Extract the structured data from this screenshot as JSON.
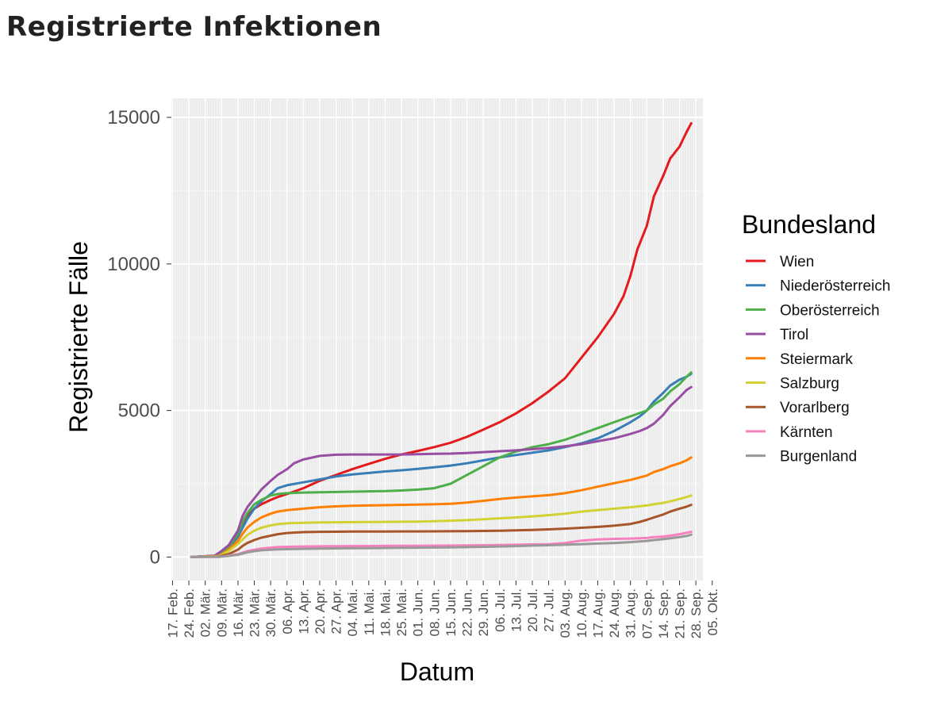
{
  "page": {
    "title": "Registrierte Infektionen"
  },
  "chart_data": {
    "type": "line",
    "title": "Registrierte Infektionen",
    "xlabel": "Datum",
    "ylabel": "Registrierte Fälle",
    "x_unit": "days since 17. Feb.",
    "xlim": [
      -0.5,
      227
    ],
    "ylim": [
      -800,
      15650
    ],
    "yticks": [
      0,
      5000,
      10000,
      15000
    ],
    "ytick_labels": [
      "0",
      "5000",
      "10000",
      "15000"
    ],
    "xticks": [
      0,
      7,
      14,
      21,
      28,
      35,
      42,
      49,
      56,
      63,
      70,
      77,
      84,
      91,
      98,
      105,
      112,
      119,
      126,
      133,
      140,
      147,
      154,
      161,
      168,
      175,
      182,
      189,
      196,
      203,
      210,
      217,
      224,
      231
    ],
    "xtick_labels": [
      "17. Feb.",
      "24. Feb.",
      "02. Mär.",
      "09. Mär.",
      "16. Mär.",
      "23. Mär.",
      "30. Mär.",
      "06. Apr.",
      "13. Apr.",
      "20. Apr.",
      "27. Apr.",
      "04. Mai.",
      "11. Mai.",
      "18. Mai.",
      "25. Mai.",
      "01. Jun.",
      "08. Jun.",
      "15. Jun.",
      "22. Jun.",
      "29. Jun.",
      "06. Jul.",
      "13. Jul.",
      "20. Jul.",
      "27. Jul.",
      "03. Aug.",
      "10. Aug.",
      "17. Aug.",
      "24. Aug.",
      "31. Aug.",
      "07. Sep.",
      "14. Sep.",
      "21. Sep.",
      "28. Sep.",
      "05. Okt."
    ],
    "grid": true,
    "legend": {
      "title": "Bundesland",
      "position": "right"
    },
    "series": [
      {
        "name": "Wien",
        "color": "#e41a1c",
        "x": [
          8,
          20,
          24,
          28,
          30,
          32,
          35,
          38,
          42,
          45,
          49,
          56,
          63,
          70,
          77,
          84,
          91,
          98,
          105,
          112,
          119,
          126,
          133,
          140,
          147,
          154,
          161,
          168,
          175,
          182,
          189,
          193,
          196,
          199,
          203,
          206,
          210,
          213,
          217,
          220,
          222
        ],
        "y": [
          0,
          40,
          300,
          700,
          1100,
          1400,
          1650,
          1800,
          1950,
          2050,
          2150,
          2350,
          2600,
          2800,
          3000,
          3180,
          3350,
          3500,
          3620,
          3750,
          3900,
          4100,
          4350,
          4600,
          4900,
          5250,
          5650,
          6100,
          6800,
          7500,
          8300,
          8900,
          9600,
          10500,
          11300,
          12300,
          13000,
          13600,
          14000,
          14500,
          14800
        ]
      },
      {
        "name": "Niederösterreich",
        "color": "#377eb8",
        "x": [
          8,
          20,
          24,
          28,
          30,
          32,
          35,
          38,
          42,
          45,
          49,
          56,
          63,
          70,
          77,
          84,
          91,
          98,
          105,
          112,
          119,
          126,
          133,
          140,
          147,
          154,
          161,
          168,
          175,
          182,
          189,
          196,
          200,
          203,
          206,
          210,
          213,
          217,
          220,
          222
        ],
        "y": [
          0,
          50,
          300,
          700,
          1000,
          1300,
          1650,
          1900,
          2150,
          2350,
          2450,
          2550,
          2650,
          2750,
          2820,
          2870,
          2920,
          2960,
          3010,
          3060,
          3120,
          3200,
          3300,
          3400,
          3480,
          3560,
          3640,
          3750,
          3880,
          4050,
          4300,
          4600,
          4800,
          5000,
          5300,
          5600,
          5850,
          6050,
          6150,
          6250
        ]
      },
      {
        "name": "Oberösterreich",
        "color": "#4daf4a",
        "x": [
          8,
          20,
          24,
          28,
          30,
          32,
          35,
          38,
          42,
          45,
          49,
          56,
          63,
          70,
          77,
          84,
          91,
          98,
          105,
          112,
          119,
          126,
          133,
          140,
          147,
          154,
          161,
          168,
          175,
          182,
          189,
          196,
          203,
          206,
          210,
          213,
          217,
          220,
          222
        ],
        "y": [
          0,
          50,
          350,
          800,
          1200,
          1500,
          1800,
          1950,
          2100,
          2150,
          2180,
          2200,
          2210,
          2220,
          2230,
          2240,
          2250,
          2270,
          2300,
          2350,
          2500,
          2800,
          3100,
          3400,
          3600,
          3750,
          3850,
          4000,
          4200,
          4400,
          4600,
          4800,
          5000,
          5200,
          5400,
          5650,
          5900,
          6150,
          6300
        ]
      },
      {
        "name": "Tirol",
        "color": "#984ea3",
        "x": [
          8,
          18,
          20,
          24,
          28,
          30,
          32,
          35,
          38,
          42,
          45,
          49,
          52,
          56,
          63,
          70,
          77,
          84,
          91,
          98,
          105,
          112,
          119,
          126,
          133,
          140,
          147,
          154,
          161,
          168,
          175,
          182,
          189,
          196,
          200,
          203,
          206,
          210,
          213,
          217,
          220,
          222
        ],
        "y": [
          0,
          50,
          150,
          400,
          900,
          1400,
          1700,
          2000,
          2300,
          2600,
          2800,
          3000,
          3200,
          3330,
          3450,
          3490,
          3500,
          3500,
          3500,
          3500,
          3510,
          3520,
          3530,
          3550,
          3580,
          3610,
          3640,
          3680,
          3720,
          3780,
          3850,
          3950,
          4050,
          4200,
          4300,
          4400,
          4550,
          4850,
          5150,
          5450,
          5700,
          5800
        ]
      },
      {
        "name": "Steiermark",
        "color": "#ff7f00",
        "x": [
          8,
          20,
          24,
          28,
          30,
          32,
          35,
          38,
          42,
          45,
          49,
          56,
          63,
          70,
          77,
          84,
          91,
          98,
          105,
          112,
          119,
          126,
          133,
          140,
          147,
          154,
          161,
          168,
          175,
          182,
          189,
          196,
          203,
          206,
          210,
          213,
          217,
          220,
          222
        ],
        "y": [
          0,
          40,
          250,
          550,
          800,
          1000,
          1200,
          1350,
          1480,
          1550,
          1600,
          1650,
          1700,
          1730,
          1750,
          1760,
          1770,
          1780,
          1790,
          1800,
          1820,
          1860,
          1920,
          1980,
          2030,
          2070,
          2110,
          2180,
          2280,
          2400,
          2520,
          2630,
          2780,
          2900,
          3000,
          3100,
          3200,
          3300,
          3400
        ]
      },
      {
        "name": "Salzburg",
        "color": "#d2d234",
        "x": [
          8,
          20,
          24,
          28,
          30,
          32,
          35,
          38,
          42,
          45,
          49,
          56,
          63,
          70,
          77,
          84,
          91,
          98,
          105,
          112,
          119,
          126,
          133,
          140,
          147,
          154,
          161,
          168,
          175,
          182,
          189,
          196,
          203,
          206,
          210,
          213,
          217,
          220,
          222
        ],
        "y": [
          0,
          30,
          200,
          450,
          600,
          750,
          900,
          1000,
          1080,
          1120,
          1150,
          1170,
          1180,
          1185,
          1190,
          1195,
          1200,
          1205,
          1210,
          1220,
          1240,
          1260,
          1290,
          1320,
          1350,
          1390,
          1430,
          1480,
          1550,
          1600,
          1650,
          1700,
          1760,
          1800,
          1850,
          1900,
          1980,
          2050,
          2100
        ]
      },
      {
        "name": "Vorarlberg",
        "color": "#a65628",
        "x": [
          8,
          20,
          24,
          28,
          30,
          32,
          35,
          38,
          42,
          45,
          49,
          56,
          63,
          70,
          77,
          84,
          91,
          98,
          105,
          112,
          119,
          126,
          133,
          140,
          147,
          154,
          161,
          168,
          175,
          182,
          189,
          196,
          200,
          203,
          206,
          210,
          213,
          217,
          220,
          222
        ],
        "y": [
          0,
          20,
          100,
          250,
          380,
          480,
          580,
          660,
          730,
          780,
          820,
          850,
          860,
          865,
          868,
          870,
          872,
          874,
          876,
          878,
          880,
          885,
          890,
          900,
          910,
          925,
          945,
          970,
          1000,
          1030,
          1070,
          1130,
          1200,
          1270,
          1350,
          1450,
          1550,
          1650,
          1720,
          1780
        ]
      },
      {
        "name": "Kärnten",
        "color": "#f781bf",
        "x": [
          8,
          20,
          24,
          28,
          30,
          32,
          35,
          38,
          42,
          45,
          49,
          56,
          63,
          70,
          77,
          84,
          91,
          98,
          105,
          112,
          119,
          126,
          133,
          140,
          147,
          154,
          161,
          168,
          175,
          182,
          189,
          196,
          203,
          206,
          210,
          213,
          217,
          220,
          222
        ],
        "y": [
          0,
          10,
          50,
          100,
          150,
          200,
          250,
          290,
          320,
          340,
          350,
          360,
          365,
          370,
          375,
          378,
          380,
          382,
          385,
          388,
          392,
          398,
          405,
          412,
          420,
          430,
          440,
          480,
          560,
          600,
          620,
          630,
          650,
          680,
          700,
          730,
          780,
          830,
          860
        ]
      },
      {
        "name": "Burgenland",
        "color": "#999999",
        "x": [
          8,
          20,
          24,
          28,
          30,
          32,
          35,
          38,
          42,
          45,
          49,
          56,
          63,
          70,
          77,
          84,
          91,
          98,
          105,
          112,
          119,
          126,
          133,
          140,
          147,
          154,
          161,
          168,
          175,
          182,
          189,
          196,
          203,
          206,
          210,
          213,
          217,
          220,
          222
        ],
        "y": [
          0,
          10,
          40,
          80,
          120,
          160,
          200,
          230,
          250,
          260,
          270,
          280,
          290,
          295,
          300,
          305,
          310,
          315,
          320,
          325,
          330,
          340,
          350,
          360,
          375,
          390,
          405,
          420,
          440,
          460,
          480,
          510,
          550,
          580,
          610,
          640,
          680,
          720,
          760
        ]
      }
    ]
  }
}
